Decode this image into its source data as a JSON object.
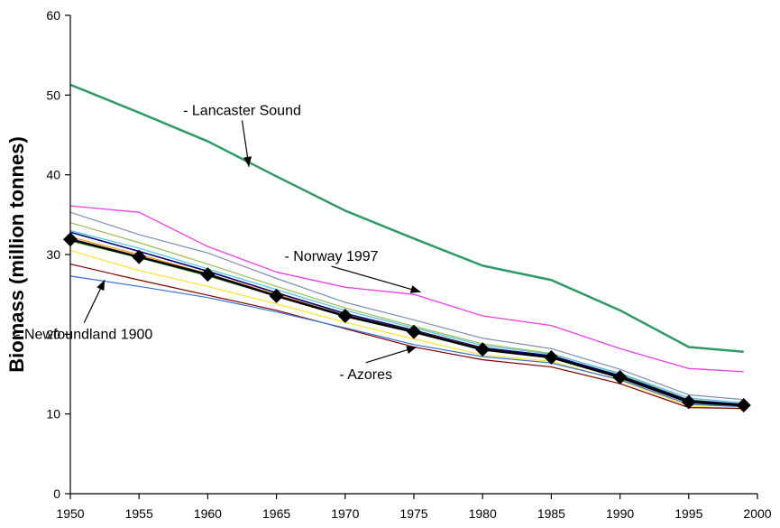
{
  "chart_data": {
    "type": "line",
    "title": "",
    "xlabel": "",
    "ylabel": "Biomass (million tonnes)",
    "xlim": [
      1950,
      2000
    ],
    "ylim": [
      0,
      60
    ],
    "grid": false,
    "x_ticks": [
      "1950",
      "1955",
      "1960",
      "1965",
      "1970",
      "1975",
      "1980",
      "1985",
      "1990",
      "1995",
      "2000"
    ],
    "y_ticks": [
      "0",
      "10",
      "20",
      "30",
      "40",
      "50",
      "60"
    ],
    "x": [
      1950,
      1955,
      1960,
      1965,
      1970,
      1975,
      1980,
      1985,
      1990,
      1995,
      1999
    ],
    "series": [
      {
        "name": "Lancaster Sound",
        "color": "#2e9a63",
        "width": 2.5,
        "values": [
          51.3,
          47.8,
          44.2,
          39.8,
          35.5,
          32.0,
          28.6,
          26.8,
          23.0,
          18.4,
          17.8
        ]
      },
      {
        "name": "Norway 1997",
        "color": "#e83ee8",
        "width": 1.3,
        "values": [
          36.1,
          35.3,
          31.0,
          27.8,
          25.9,
          25.0,
          22.3,
          21.1,
          18.2,
          15.7,
          15.3
        ]
      },
      {
        "color": "#7d8fb3",
        "width": 1.2,
        "values": [
          35.3,
          32.5,
          30.2,
          27.0,
          24.0,
          21.8,
          19.5,
          18.2,
          15.6,
          12.4,
          11.8
        ]
      },
      {
        "color": "#9bbb59",
        "width": 1.2,
        "values": [
          34.0,
          31.5,
          28.8,
          26.0,
          23.3,
          21.0,
          18.8,
          17.6,
          15.0,
          11.8,
          11.2
        ]
      },
      {
        "color": "#4cc3e0",
        "width": 1.2,
        "values": [
          33.0,
          30.8,
          28.2,
          25.6,
          23.0,
          20.8,
          18.6,
          17.5,
          15.1,
          12.0,
          11.4
        ]
      },
      {
        "color": "#00007f",
        "width": 1.6,
        "values": [
          32.8,
          30.4,
          27.9,
          25.2,
          22.6,
          20.5,
          18.3,
          17.3,
          14.8,
          11.7,
          11.2
        ]
      },
      {
        "color": "#ff8c00",
        "width": 1.2,
        "values": [
          32.2,
          30.0,
          27.6,
          25.0,
          22.4,
          20.4,
          18.2,
          17.1,
          14.6,
          11.5,
          11.0
        ]
      },
      {
        "color": "#33a02c",
        "width": 1.2,
        "values": [
          31.7,
          29.6,
          27.3,
          24.8,
          22.2,
          20.2,
          18.0,
          17.0,
          14.5,
          11.4,
          10.9
        ]
      },
      {
        "color": "#ffe135",
        "width": 1.2,
        "values": [
          30.5,
          28.0,
          26.0,
          23.8,
          21.5,
          19.4,
          17.4,
          16.6,
          14.2,
          11.0,
          10.6
        ]
      },
      {
        "color": "#7f0000",
        "width": 1.2,
        "values": [
          28.8,
          26.8,
          24.9,
          23.0,
          20.7,
          18.4,
          16.8,
          15.9,
          13.8,
          10.8,
          10.7
        ]
      },
      {
        "name": "Newfoundland 1900",
        "color": "#3a6fd8",
        "width": 1.2,
        "values": [
          27.3,
          26.0,
          24.6,
          22.8,
          20.8,
          18.7,
          17.2,
          16.4,
          14.3,
          11.2,
          10.9
        ]
      },
      {
        "name": "Azores",
        "color": "#000000",
        "width": 2.5,
        "marker": "diamond",
        "values": [
          31.9,
          29.7,
          27.5,
          24.8,
          22.3,
          20.3,
          18.1,
          17.1,
          14.6,
          11.5,
          11.1
        ]
      }
    ],
    "annotations": [
      {
        "text": "- Lancaster Sound",
        "x": 1962.5,
        "y": 47.5,
        "arrow_to": [
          1963,
          41
        ]
      },
      {
        "text": "- Norway 1997",
        "x": 1969,
        "y": 29.2,
        "arrow_to": [
          1975.5,
          25.3
        ]
      },
      {
        "text": "- Newfoundland 1900",
        "x": 1951,
        "y": 19.4,
        "arrow_to": [
          1952.5,
          26.8
        ]
      },
      {
        "text": "- Azores",
        "x": 1971.5,
        "y": 14.4,
        "arrow_to": [
          1975.2,
          18.4
        ]
      }
    ]
  }
}
